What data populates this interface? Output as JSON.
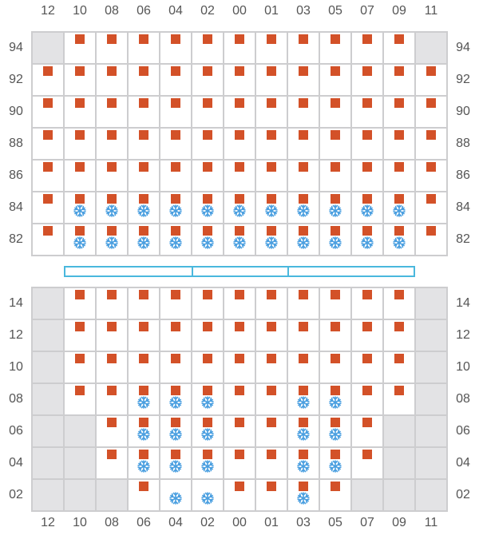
{
  "colors": {
    "container_square": "#d35128",
    "reefer_icon": "#4a9fe0",
    "blocked_cell": "#e3e3e5",
    "grid_line": "#cdcdcf",
    "hatch_cover": "#4ab8dd",
    "label_text": "#555555"
  },
  "legend_icons": {
    "container": "square-icon",
    "reefer": "snowflake-icon"
  },
  "column_labels": [
    "12",
    "10",
    "08",
    "06",
    "04",
    "02",
    "00",
    "01",
    "03",
    "05",
    "07",
    "09",
    "11"
  ],
  "on_deck": {
    "tier_labels": [
      "94",
      "92",
      "90",
      "88",
      "86",
      "84",
      "82"
    ],
    "cells": [
      "B C C C C C C C C C C C B",
      "C C C C C C C C C C C C C",
      "C C C C C C C C C C C C C",
      "C C C C C C C C C C C C C",
      "C C C C C C C C C C C C C",
      "C R R R R R R R R R R R C",
      "C R R R R R R R R R R R C"
    ]
  },
  "hatch_cover": {
    "panels": 3
  },
  "in_hold": {
    "tier_labels": [
      "14",
      "12",
      "10",
      "08",
      "06",
      "04",
      "02"
    ],
    "cells": [
      "B C C C C C C C C C C C B",
      "B C C C C C C C C C C C B",
      "B C C C C C C C C C C C B",
      "B C C R R R C C R R C C B",
      "B B C R R R C C R R C B B",
      "B B C R R R C C R R C B B",
      "B B B C S S C C R C B B B"
    ]
  },
  "cell_legend": {
    "C": "container",
    "R": "container-with-reefer",
    "S": "reefer-only",
    "B": "blocked",
    "E": "empty"
  }
}
